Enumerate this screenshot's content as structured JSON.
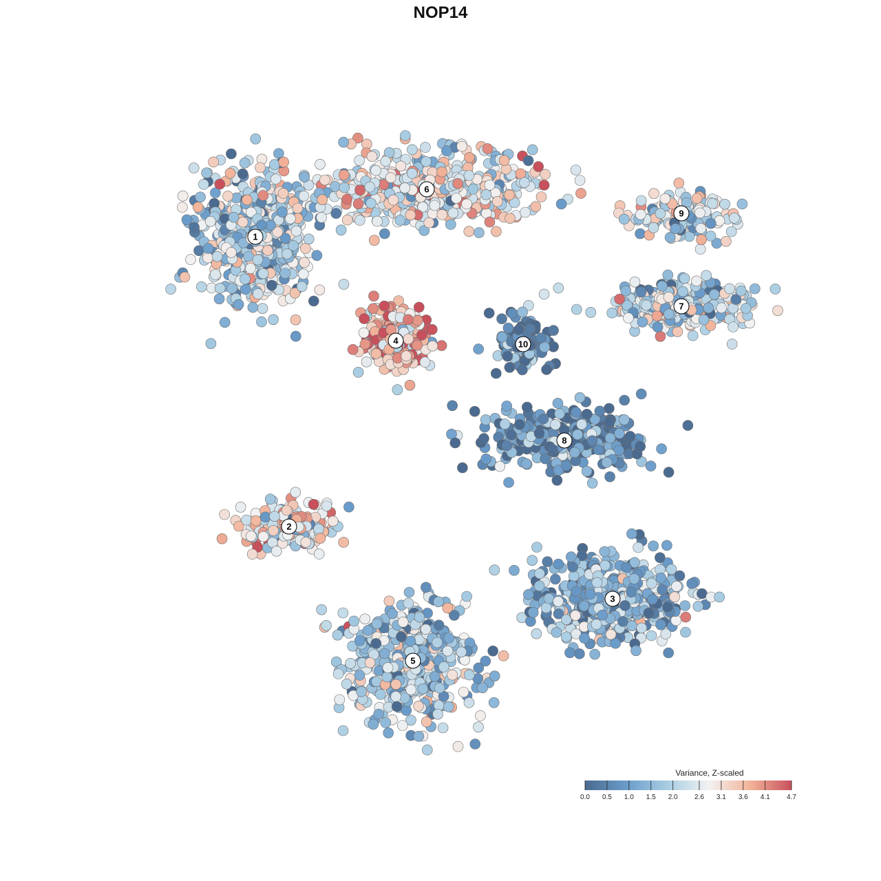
{
  "chart_data": {
    "type": "scatter",
    "title": "NOP14",
    "xlabel": "",
    "ylabel": "",
    "grid": false,
    "color_scale": {
      "title": "Variance, Z-scaled",
      "min": 0.0,
      "max": 4.7,
      "ticks": [
        0.0,
        0.5,
        1.0,
        1.5,
        2.0,
        2.6,
        3.1,
        3.6,
        4.1,
        4.7
      ],
      "tick_labels": [
        "0.0",
        "0.5",
        "1.0",
        "1.5",
        "2.0",
        "2.6",
        "3.1",
        "3.6",
        "4.1",
        "4.7"
      ],
      "colors": [
        "#4b6a8f",
        "#6a9ccb",
        "#a9cde3",
        "#f2f2f2",
        "#f2b399",
        "#c8505c"
      ],
      "legend_position": "bottom-right"
    },
    "clusters": [
      {
        "label": "1",
        "center": [
          371,
          344
        ],
        "spread": [
          95,
          115
        ],
        "n": 520,
        "mean_value": 1.9
      },
      {
        "label": "2",
        "center": [
          420,
          765
        ],
        "spread": [
          85,
          40
        ],
        "n": 180,
        "mean_value": 2.9
      },
      {
        "label": "3",
        "center": [
          890,
          870
        ],
        "spread": [
          120,
          70
        ],
        "n": 480,
        "mean_value": 1.4
      },
      {
        "label": "4",
        "center": [
          575,
          495
        ],
        "spread": [
          60,
          55
        ],
        "n": 230,
        "mean_value": 3.6
      },
      {
        "label": "5",
        "center": [
          600,
          960
        ],
        "spread": [
          110,
          95
        ],
        "n": 500,
        "mean_value": 1.8
      },
      {
        "label": "6",
        "center": [
          620,
          275
        ],
        "spread": [
          190,
          55
        ],
        "n": 520,
        "mean_value": 2.6
      },
      {
        "label": "7",
        "center": [
          990,
          445
        ],
        "spread": [
          110,
          40
        ],
        "n": 260,
        "mean_value": 2.0
      },
      {
        "label": "8",
        "center": [
          820,
          640
        ],
        "spread": [
          130,
          55
        ],
        "n": 330,
        "mean_value": 0.8
      },
      {
        "label": "9",
        "center": [
          990,
          310
        ],
        "spread": [
          85,
          35
        ],
        "n": 160,
        "mean_value": 2.4
      },
      {
        "label": "10",
        "center": [
          760,
          500
        ],
        "spread": [
          45,
          50
        ],
        "n": 90,
        "mean_value": 0.5
      }
    ]
  }
}
